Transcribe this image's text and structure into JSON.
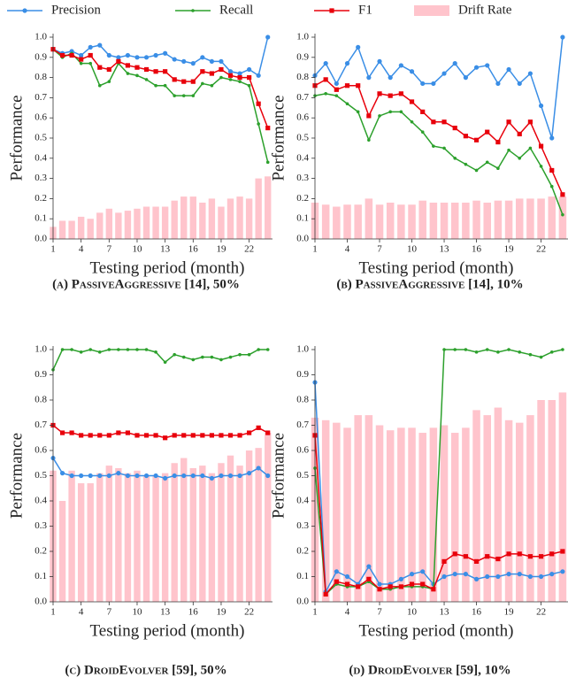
{
  "legend": [
    {
      "name": "Precision",
      "color": "#3a8ee6",
      "type": "line",
      "marker": "circle"
    },
    {
      "name": "Recall",
      "color": "#2ca02c",
      "type": "line",
      "marker": "small"
    },
    {
      "name": "F1",
      "color": "#e8000b",
      "type": "line",
      "marker": "square"
    },
    {
      "name": "Drift Rate",
      "color": "#ffc4cc",
      "type": "bar"
    }
  ],
  "chart_data": [
    {
      "type": "combo",
      "caption": "(a) PassiveAggressive [14], 50%",
      "xlabel": "Testing period (month)",
      "ylabel": "Performance",
      "x": [
        1,
        2,
        3,
        4,
        5,
        6,
        7,
        8,
        9,
        10,
        11,
        12,
        13,
        14,
        15,
        16,
        17,
        18,
        19,
        20,
        21,
        22,
        23,
        24
      ],
      "xlim": [
        1,
        24.5
      ],
      "xticks": [
        1,
        4,
        7,
        10,
        13,
        16,
        19,
        22
      ],
      "ylim": [
        0,
        1
      ],
      "yticks": [
        {
          "value": 0,
          "label": "0.0"
        },
        {
          "value": 0.1,
          "label": "0.1"
        },
        {
          "value": 0.2,
          "label": "0.2"
        },
        {
          "value": 0.3,
          "label": "0.3"
        },
        {
          "value": 0.4,
          "label": "0.4"
        },
        {
          "value": 0.5,
          "label": "0.5"
        },
        {
          "value": 0.6,
          "label": "0.6"
        },
        {
          "value": 0.7,
          "label": "0.7"
        },
        {
          "value": 0.8,
          "label": "0.8"
        },
        {
          "value": 0.9,
          "label": "0.9"
        },
        {
          "value": 1,
          "label": "1.0"
        }
      ],
      "series": [
        {
          "values": [
            0.94,
            0.92,
            0.93,
            0.91,
            0.95,
            0.96,
            0.91,
            0.9,
            0.91,
            0.9,
            0.9,
            0.91,
            0.92,
            0.89,
            0.88,
            0.87,
            0.9,
            0.88,
            0.88,
            0.83,
            0.82,
            0.84,
            0.81,
            1.0
          ]
        },
        {
          "values": [
            0.94,
            0.9,
            0.92,
            0.87,
            0.87,
            0.76,
            0.78,
            0.87,
            0.82,
            0.81,
            0.79,
            0.76,
            0.76,
            0.71,
            0.71,
            0.71,
            0.77,
            0.76,
            0.8,
            0.79,
            0.78,
            0.76,
            0.57,
            0.38
          ]
        },
        {
          "values": [
            0.94,
            0.91,
            0.91,
            0.89,
            0.91,
            0.85,
            0.84,
            0.88,
            0.86,
            0.85,
            0.84,
            0.83,
            0.83,
            0.79,
            0.78,
            0.78,
            0.83,
            0.82,
            0.84,
            0.81,
            0.8,
            0.8,
            0.67,
            0.55
          ]
        },
        {
          "values": [
            0.06,
            0.09,
            0.09,
            0.11,
            0.1,
            0.13,
            0.15,
            0.13,
            0.14,
            0.15,
            0.16,
            0.16,
            0.16,
            0.19,
            0.21,
            0.21,
            0.18,
            0.2,
            0.16,
            0.2,
            0.21,
            0.2,
            0.3,
            0.31
          ]
        }
      ]
    },
    {
      "type": "combo",
      "caption": "(b) PassiveAggressive [14], 10%",
      "xlabel": "Testing period (month)",
      "ylabel": "Performance",
      "x": [
        1,
        2,
        3,
        4,
        5,
        6,
        7,
        8,
        9,
        10,
        11,
        12,
        13,
        14,
        15,
        16,
        17,
        18,
        19,
        20,
        21,
        22,
        23,
        24
      ],
      "xlim": [
        1,
        24.5
      ],
      "xticks": [
        1,
        4,
        7,
        10,
        13,
        16,
        19,
        22
      ],
      "ylim": [
        0,
        1
      ],
      "yticks": [
        {
          "value": 0,
          "label": "0.0"
        },
        {
          "value": 0.1,
          "label": "0.1"
        },
        {
          "value": 0.2,
          "label": "0.2"
        },
        {
          "value": 0.3,
          "label": "0.3"
        },
        {
          "value": 0.4,
          "label": "0.4"
        },
        {
          "value": 0.5,
          "label": "0.5"
        },
        {
          "value": 0.6,
          "label": "0.6"
        },
        {
          "value": 0.7,
          "label": "0.7"
        },
        {
          "value": 0.8,
          "label": "0.8"
        },
        {
          "value": 0.9,
          "label": "0.9"
        },
        {
          "value": 1,
          "label": "1.0"
        }
      ],
      "series": [
        {
          "values": [
            0.81,
            0.87,
            0.77,
            0.87,
            0.95,
            0.8,
            0.88,
            0.8,
            0.86,
            0.83,
            0.77,
            0.77,
            0.82,
            0.87,
            0.8,
            0.85,
            0.86,
            0.77,
            0.84,
            0.77,
            0.82,
            0.66,
            0.5,
            1.0
          ]
        },
        {
          "values": [
            0.71,
            0.72,
            0.71,
            0.67,
            0.63,
            0.49,
            0.61,
            0.63,
            0.63,
            0.58,
            0.53,
            0.46,
            0.45,
            0.4,
            0.37,
            0.34,
            0.38,
            0.35,
            0.44,
            0.4,
            0.45,
            0.36,
            0.26,
            0.12
          ]
        },
        {
          "values": [
            0.76,
            0.79,
            0.74,
            0.76,
            0.76,
            0.61,
            0.72,
            0.71,
            0.72,
            0.68,
            0.63,
            0.58,
            0.58,
            0.55,
            0.51,
            0.49,
            0.53,
            0.48,
            0.58,
            0.52,
            0.58,
            0.46,
            0.34,
            0.22
          ]
        },
        {
          "values": [
            0.18,
            0.17,
            0.16,
            0.17,
            0.17,
            0.2,
            0.17,
            0.18,
            0.17,
            0.17,
            0.19,
            0.18,
            0.18,
            0.18,
            0.18,
            0.19,
            0.18,
            0.19,
            0.19,
            0.2,
            0.2,
            0.2,
            0.21,
            0.21
          ]
        }
      ]
    },
    {
      "type": "combo",
      "caption": "(c) DroidEvolver [59], 50%",
      "xlabel": "Testing period (month)",
      "ylabel": "Performance",
      "x": [
        1,
        2,
        3,
        4,
        5,
        6,
        7,
        8,
        9,
        10,
        11,
        12,
        13,
        14,
        15,
        16,
        17,
        18,
        19,
        20,
        21,
        22,
        23,
        24
      ],
      "xlim": [
        1,
        24.5
      ],
      "xticks": [
        1,
        4,
        7,
        10,
        13,
        16,
        19,
        22
      ],
      "ylim": [
        0,
        1
      ],
      "yticks": [
        {
          "value": 0,
          "label": "0.0"
        },
        {
          "value": 0.1,
          "label": "0.1"
        },
        {
          "value": 0.2,
          "label": "0.2"
        },
        {
          "value": 0.3,
          "label": "0.3"
        },
        {
          "value": 0.4,
          "label": "0.4"
        },
        {
          "value": 0.5,
          "label": "0.5"
        },
        {
          "value": 0.6,
          "label": "0.6"
        },
        {
          "value": 0.7,
          "label": "0.7"
        },
        {
          "value": 0.8,
          "label": "0.8"
        },
        {
          "value": 0.9,
          "label": "0.9"
        },
        {
          "value": 1,
          "label": "1.0"
        }
      ],
      "series": [
        {
          "values": [
            0.57,
            0.51,
            0.5,
            0.5,
            0.5,
            0.5,
            0.5,
            0.51,
            0.5,
            0.5,
            0.5,
            0.5,
            0.49,
            0.5,
            0.5,
            0.5,
            0.5,
            0.49,
            0.5,
            0.5,
            0.5,
            0.51,
            0.53,
            0.5
          ]
        },
        {
          "values": [
            0.92,
            1.0,
            1.0,
            0.99,
            1.0,
            0.99,
            1.0,
            1.0,
            1.0,
            1.0,
            1.0,
            0.99,
            0.95,
            0.98,
            0.97,
            0.96,
            0.97,
            0.97,
            0.96,
            0.97,
            0.98,
            0.98,
            1.0,
            1.0
          ]
        },
        {
          "values": [
            0.7,
            0.67,
            0.67,
            0.66,
            0.66,
            0.66,
            0.66,
            0.67,
            0.67,
            0.66,
            0.66,
            0.66,
            0.65,
            0.66,
            0.66,
            0.66,
            0.66,
            0.66,
            0.66,
            0.66,
            0.66,
            0.67,
            0.69,
            0.67
          ]
        },
        {
          "values": [
            0.52,
            0.4,
            0.52,
            0.47,
            0.47,
            0.51,
            0.54,
            0.53,
            0.51,
            0.52,
            0.5,
            0.5,
            0.51,
            0.55,
            0.57,
            0.53,
            0.54,
            0.51,
            0.55,
            0.58,
            0.54,
            0.6,
            0.61,
            0.67
          ]
        }
      ]
    },
    {
      "type": "combo",
      "caption": "(d) DroidEvolver [59], 10%",
      "xlabel": "Testing period (month)",
      "ylabel": "Performance",
      "x": [
        1,
        2,
        3,
        4,
        5,
        6,
        7,
        8,
        9,
        10,
        11,
        12,
        13,
        14,
        15,
        16,
        17,
        18,
        19,
        20,
        21,
        22,
        23,
        24
      ],
      "xlim": [
        1,
        24.5
      ],
      "xticks": [
        1,
        4,
        7,
        10,
        13,
        16,
        19,
        22
      ],
      "ylim": [
        0,
        1
      ],
      "yticks": [
        {
          "value": 0,
          "label": "0.0"
        },
        {
          "value": 0.1,
          "label": "0.1"
        },
        {
          "value": 0.2,
          "label": "0.2"
        },
        {
          "value": 0.3,
          "label": "0.3"
        },
        {
          "value": 0.4,
          "label": "0.4"
        },
        {
          "value": 0.5,
          "label": "0.5"
        },
        {
          "value": 0.6,
          "label": "0.6"
        },
        {
          "value": 0.7,
          "label": "0.7"
        },
        {
          "value": 0.8,
          "label": "0.8"
        },
        {
          "value": 0.9,
          "label": "0.9"
        },
        {
          "value": 1,
          "label": "1.0"
        }
      ],
      "series": [
        {
          "values": [
            0.87,
            0.04,
            0.12,
            0.1,
            0.07,
            0.14,
            0.07,
            0.07,
            0.09,
            0.11,
            0.12,
            0.07,
            0.1,
            0.11,
            0.11,
            0.09,
            0.1,
            0.1,
            0.11,
            0.11,
            0.1,
            0.1,
            0.11,
            0.12
          ]
        },
        {
          "values": [
            0.53,
            0.03,
            0.07,
            0.06,
            0.06,
            0.08,
            0.05,
            0.05,
            0.06,
            0.06,
            0.06,
            0.05,
            1.0,
            1.0,
            1.0,
            0.99,
            1.0,
            0.99,
            1.0,
            0.99,
            0.98,
            0.97,
            0.99,
            1.0
          ]
        },
        {
          "values": [
            0.66,
            0.03,
            0.08,
            0.07,
            0.06,
            0.09,
            0.05,
            0.06,
            0.06,
            0.07,
            0.07,
            0.05,
            0.16,
            0.19,
            0.18,
            0.16,
            0.18,
            0.17,
            0.19,
            0.19,
            0.18,
            0.18,
            0.19,
            0.2
          ]
        },
        {
          "values": [
            0.73,
            0.72,
            0.71,
            0.69,
            0.74,
            0.74,
            0.7,
            0.68,
            0.69,
            0.69,
            0.67,
            0.69,
            0.7,
            0.67,
            0.69,
            0.76,
            0.74,
            0.77,
            0.72,
            0.71,
            0.74,
            0.8,
            0.8,
            0.83
          ]
        }
      ]
    }
  ]
}
